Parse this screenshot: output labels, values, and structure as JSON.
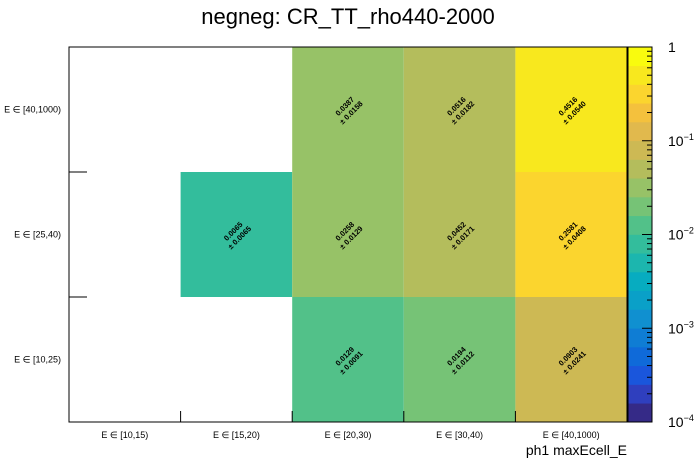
{
  "chart_data": {
    "type": "heatmap",
    "title": "negneg: CR_TT_rho440-2000",
    "xlabel": "ph1 maxEcell_E",
    "ylabel": "",
    "x_categories": [
      "E ∈ [10,15)",
      "E ∈ [15,20)",
      "E ∈ [20,30)",
      "E ∈ [30,40)",
      "E ∈ [40,1000)"
    ],
    "y_categories": [
      "E ∈ [10,25)",
      "E ∈ [25,40)",
      "E ∈ [40,1000)"
    ],
    "cells": [
      {
        "x": 1,
        "y": 1,
        "value": 0.0065,
        "error": 0.0065,
        "value_text": "0.0065",
        "error_text": "± 0.0065"
      },
      {
        "x": 2,
        "y": 0,
        "value": 0.0129,
        "error": 0.0091,
        "value_text": "0.0129",
        "error_text": "± 0.0091"
      },
      {
        "x": 2,
        "y": 1,
        "value": 0.0258,
        "error": 0.0129,
        "value_text": "0.0258",
        "error_text": "± 0.0129"
      },
      {
        "x": 2,
        "y": 2,
        "value": 0.0387,
        "error": 0.0158,
        "value_text": "0.0387",
        "error_text": "± 0.0158"
      },
      {
        "x": 3,
        "y": 0,
        "value": 0.0194,
        "error": 0.0112,
        "value_text": "0.0194",
        "error_text": "± 0.0112"
      },
      {
        "x": 3,
        "y": 1,
        "value": 0.0452,
        "error": 0.0171,
        "value_text": "0.0452",
        "error_text": "± 0.0171"
      },
      {
        "x": 3,
        "y": 2,
        "value": 0.0516,
        "error": 0.0182,
        "value_text": "0.0516",
        "error_text": "± 0.0182"
      },
      {
        "x": 4,
        "y": 0,
        "value": 0.0903,
        "error": 0.0241,
        "value_text": "0.0903",
        "error_text": "± 0.0241"
      },
      {
        "x": 4,
        "y": 1,
        "value": 0.2581,
        "error": 0.0408,
        "value_text": "0.2581",
        "error_text": "± 0.0408"
      },
      {
        "x": 4,
        "y": 2,
        "value": 0.4516,
        "error": 0.054,
        "value_text": "0.4516",
        "error_text": "± 0.0540"
      }
    ],
    "zlim": [
      0.0001,
      1
    ],
    "z_scale": "log",
    "z_ticks": [
      {
        "value": 1,
        "base": "1",
        "exp": ""
      },
      {
        "value": 0.1,
        "base": "10",
        "exp": "−1"
      },
      {
        "value": 0.01,
        "base": "10",
        "exp": "−2"
      },
      {
        "value": 0.001,
        "base": "10",
        "exp": "−3"
      },
      {
        "value": 0.0001,
        "base": "10",
        "exp": "−4"
      }
    ],
    "palette": [
      "#352a87",
      "#2f3fbe",
      "#1a56dc",
      "#0f6ad9",
      "#0f7dd4",
      "#1090d0",
      "#0aa0c8",
      "#07acc0",
      "#1cb6ae",
      "#33bd9c",
      "#52c189",
      "#76c376",
      "#97c267",
      "#b4bd5c",
      "#cdb954",
      "#e1b94d",
      "#f4c13d",
      "#fbd52e",
      "#f8e81e",
      "#f9fb0e"
    ],
    "grid": false,
    "colorbar": "right"
  }
}
